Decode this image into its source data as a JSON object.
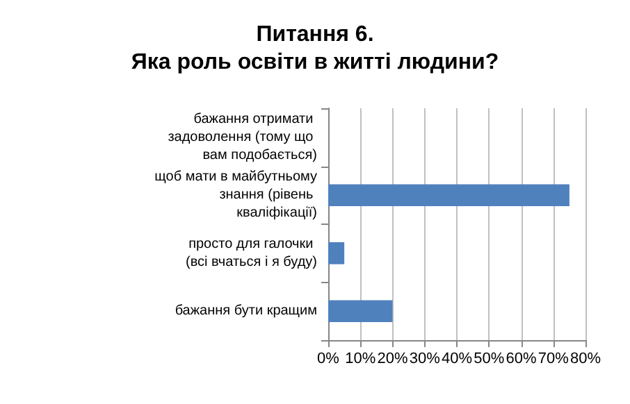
{
  "chart_data": {
    "type": "bar",
    "orientation": "horizontal",
    "title": "Питання 6.",
    "subtitle": "Яка роль освіти в житті людини?",
    "categories": [
      "бажання отримати задоволення (тому що вам подобається)",
      "щоб мати в майбутньому знання (рівень кваліфікації)",
      "просто для галочки (всі вчаться і я буду)",
      "бажання бути кращим"
    ],
    "values": [
      0,
      75,
      5,
      20
    ],
    "color": "#4f81bd",
    "xlim": [
      0,
      80
    ],
    "xticks": [
      {
        "value": 0,
        "label": "0%"
      },
      {
        "value": 10,
        "label": "10%"
      },
      {
        "value": 20,
        "label": "20%"
      },
      {
        "value": 30,
        "label": "30%"
      },
      {
        "value": 40,
        "label": "40%"
      },
      {
        "value": 50,
        "label": "50%"
      },
      {
        "value": 60,
        "label": "60%"
      },
      {
        "value": 70,
        "label": "70%"
      },
      {
        "value": 80,
        "label": "80%"
      }
    ],
    "grid": "x"
  }
}
